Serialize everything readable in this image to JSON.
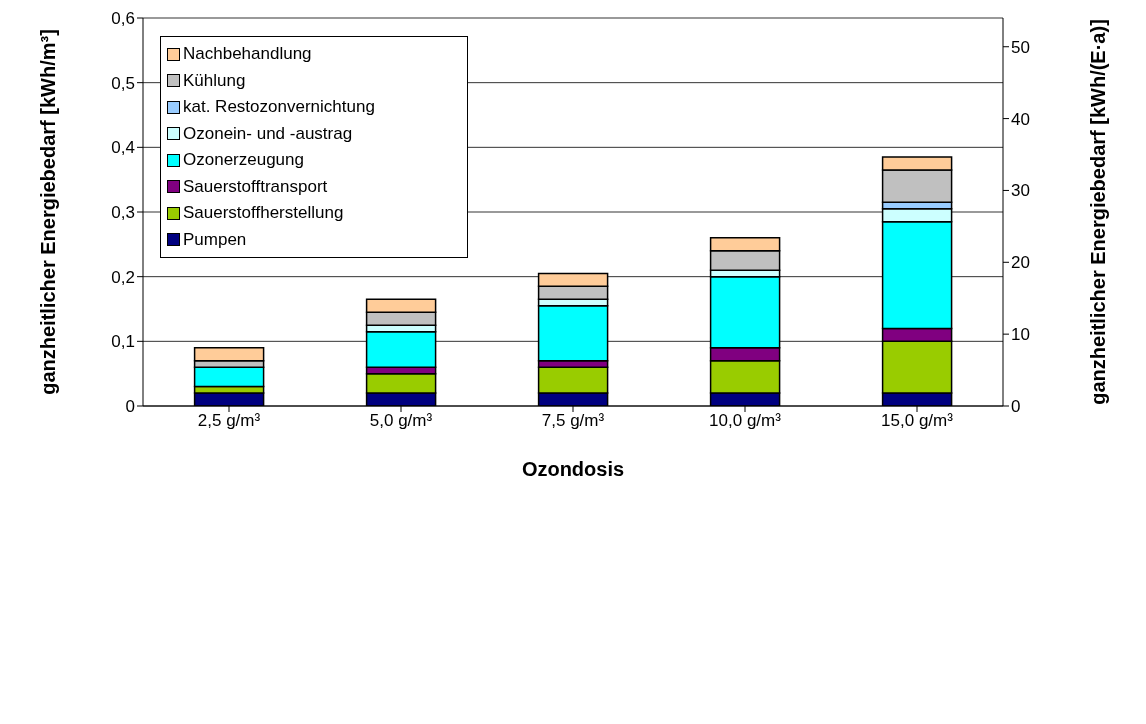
{
  "chart_data": {
    "type": "bar",
    "stacked": true,
    "xlabel": "Ozondosis",
    "ylabel": "ganzheitlicher Energiebedarf [kWh/m³]",
    "y2label": "ganzheitlicher Energiebedarf [kWh/(E·a)]",
    "categories": [
      "2,5 g/m³",
      "5,0 g/m³",
      "7,5 g/m³",
      "10,0 g/m³",
      "15,0 g/m³"
    ],
    "series": [
      {
        "name": "Pumpen",
        "color": "#000080",
        "values": [
          0.02,
          0.02,
          0.02,
          0.02,
          0.02
        ]
      },
      {
        "name": "Sauerstoffherstellung",
        "color": "#99cc00",
        "values": [
          0.01,
          0.03,
          0.04,
          0.05,
          0.08
        ]
      },
      {
        "name": "Sauerstofftransport",
        "color": "#800080",
        "values": [
          0,
          0.01,
          0.01,
          0.02,
          0.02
        ]
      },
      {
        "name": "Ozonerzeugung",
        "color": "#00ffff",
        "values": [
          0.03,
          0.055,
          0.085,
          0.11,
          0.165
        ]
      },
      {
        "name": "Ozonein- und -austrag",
        "color": "#ccffff",
        "values": [
          0,
          0.01,
          0.01,
          0.01,
          0.02
        ]
      },
      {
        "name": "kat. Restozonvernichtung",
        "color": "#99ccff",
        "values": [
          0,
          0,
          0,
          0,
          0.01
        ]
      },
      {
        "name": "Kühlung",
        "color": "#c0c0c0",
        "values": [
          0.01,
          0.02,
          0.02,
          0.03,
          0.05
        ]
      },
      {
        "name": "Nachbehandlung",
        "color": "#ffcc99",
        "values": [
          0.02,
          0.02,
          0.02,
          0.02,
          0.02
        ]
      }
    ],
    "ylim": [
      0,
      0.6
    ],
    "yticks": [
      0,
      {
        "value": 0.1,
        "label": "0,1"
      },
      {
        "value": 0.2,
        "label": "0,2"
      },
      {
        "value": 0.3,
        "label": "0,3"
      },
      {
        "value": 0.4,
        "label": "0,4"
      },
      {
        "value": 0.5,
        "label": "0,5"
      },
      {
        "value": 0.6,
        "label": "0,6"
      }
    ],
    "y2lim": [
      0,
      54
    ],
    "y2ticks": [
      0,
      10,
      20,
      30,
      40,
      50
    ],
    "grid": "y",
    "legend": "top left"
  }
}
